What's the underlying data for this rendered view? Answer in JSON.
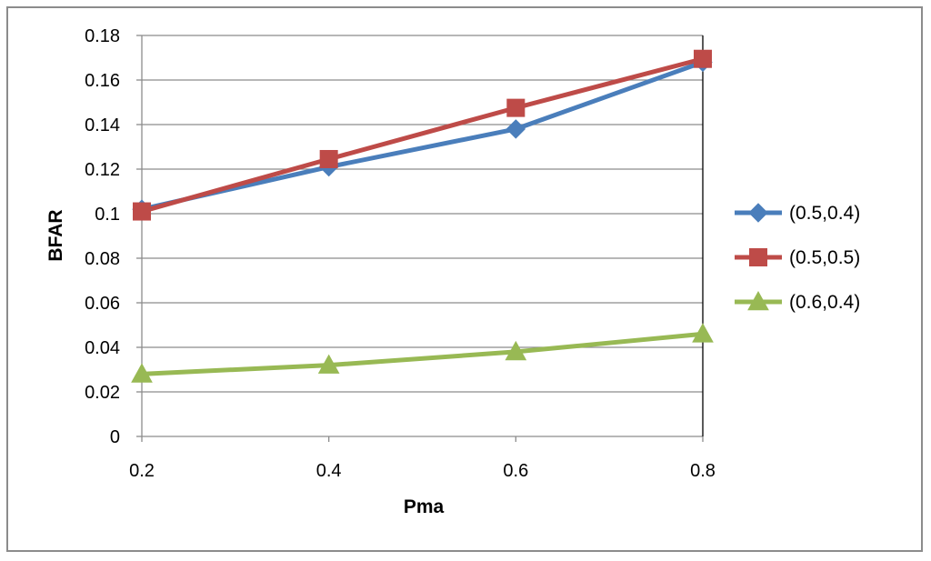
{
  "chart_data": {
    "type": "line",
    "title": "",
    "xlabel": "Pma",
    "ylabel": "BFAR",
    "x": [
      0.2,
      0.4,
      0.6,
      0.8
    ],
    "x_tick_labels": [
      "0.2",
      "0.4",
      "0.6",
      "0.8"
    ],
    "ylim": [
      0,
      0.18
    ],
    "y_ticks": [
      0,
      0.02,
      0.04,
      0.06,
      0.08,
      0.1,
      0.12,
      0.14,
      0.16,
      0.18
    ],
    "y_tick_labels": [
      "0",
      "0.02",
      "0.04",
      "0.06",
      "0.08",
      "0.1",
      "0.12",
      "0.14",
      "0.16",
      "0.18"
    ],
    "grid": true,
    "legend_position": "right",
    "series": [
      {
        "name": "(0.5,0.4)",
        "values": [
          0.102,
          0.121,
          0.138,
          0.168
        ],
        "color": "#4a7ebb",
        "marker": "diamond"
      },
      {
        "name": "(0.5,0.5)",
        "values": [
          0.101,
          0.1245,
          0.1475,
          0.1695
        ],
        "color": "#be4b48",
        "marker": "square"
      },
      {
        "name": "(0.6,0.4)",
        "values": [
          0.028,
          0.032,
          0.038,
          0.046
        ],
        "color": "#98b954",
        "marker": "triangle"
      }
    ]
  }
}
